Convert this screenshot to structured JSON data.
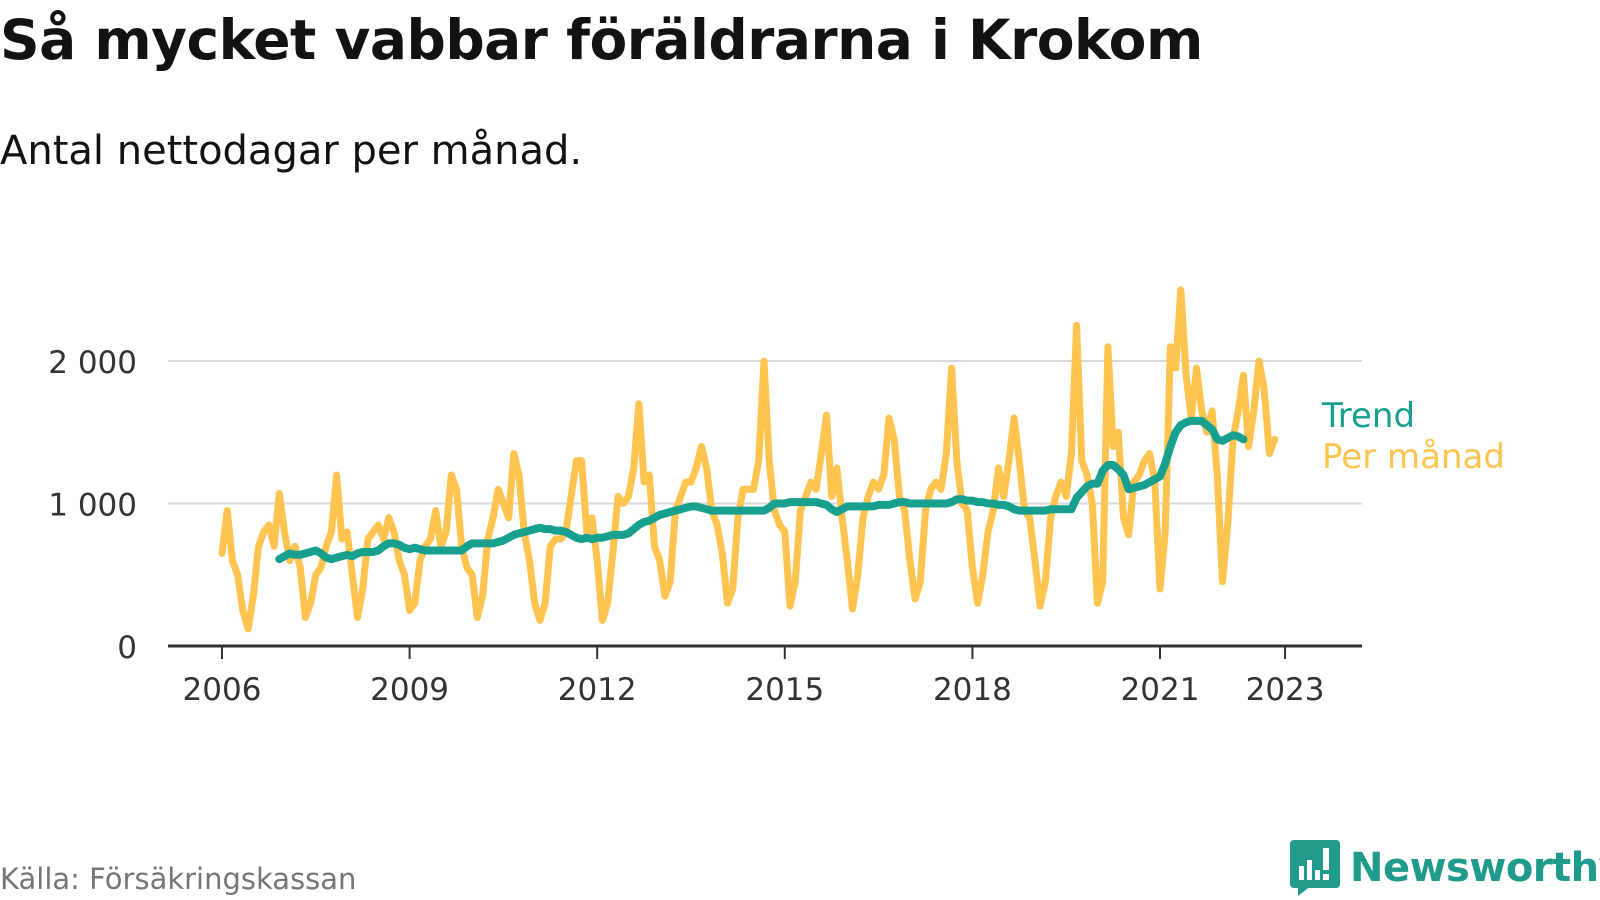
{
  "title": "Så mycket vabbar föräldrarna i Krokom",
  "subtitle": "Antal nettodagar per månad.",
  "source": "Källa: Försäkringskassan",
  "brand": {
    "name": "Newsworthy",
    "icon": "newsworthy-logo-icon",
    "color": "#1f9a8b"
  },
  "chart_data": {
    "type": "line",
    "ylim": [
      0,
      2500
    ],
    "y_ticks": [
      0,
      1000,
      2000
    ],
    "y_tick_labels": [
      "0",
      "1 000",
      "2 000"
    ],
    "x_ticks": [
      2006,
      2009,
      2012,
      2015,
      2018,
      2021,
      2023
    ],
    "x_tick_labels": [
      "2006",
      "2009",
      "2012",
      "2015",
      "2018",
      "2021",
      "2023"
    ],
    "grid": true,
    "legend": "right-end",
    "series": [
      {
        "name": "Per månad",
        "color": "#fec44f",
        "start": [
          2006,
          1
        ],
        "values": [
          650,
          950,
          600,
          500,
          250,
          120,
          350,
          700,
          800,
          850,
          700,
          1070,
          800,
          600,
          700,
          550,
          200,
          300,
          500,
          550,
          700,
          800,
          1200,
          750,
          800,
          500,
          200,
          400,
          750,
          800,
          850,
          750,
          900,
          800,
          600,
          500,
          250,
          300,
          600,
          700,
          750,
          950,
          700,
          800,
          1200,
          1100,
          700,
          550,
          500,
          200,
          350,
          750,
          900,
          1100,
          1000,
          900,
          1350,
          1200,
          800,
          600,
          300,
          180,
          300,
          700,
          750,
          750,
          800,
          1050,
          1300,
          1300,
          800,
          900,
          600,
          180,
          300,
          650,
          1050,
          1000,
          1050,
          1250,
          1700,
          1150,
          1200,
          700,
          600,
          350,
          450,
          950,
          1050,
          1150,
          1150,
          1250,
          1400,
          1250,
          950,
          850,
          650,
          300,
          400,
          900,
          1100,
          1100,
          1100,
          1300,
          2000,
          1300,
          950,
          850,
          800,
          280,
          450,
          950,
          1050,
          1150,
          1100,
          1350,
          1620,
          1050,
          1250,
          900,
          600,
          260,
          500,
          900,
          1050,
          1150,
          1100,
          1200,
          1600,
          1450,
          1050,
          950,
          600,
          330,
          450,
          950,
          1100,
          1150,
          1100,
          1350,
          1950,
          1300,
          1000,
          950,
          550,
          300,
          500,
          800,
          950,
          1250,
          1050,
          1300,
          1600,
          1300,
          950,
          900,
          600,
          280,
          450,
          900,
          1050,
          1150,
          1050,
          1350,
          2250,
          1300,
          1200,
          1000,
          300,
          450,
          2100,
          1400,
          1500,
          900,
          780,
          1150,
          1200,
          1300,
          1350,
          1150,
          400,
          800,
          2100,
          1950,
          2500,
          1900,
          1600,
          1950,
          1650,
          1500,
          1650,
          1200,
          450,
          850,
          1450,
          1650,
          1900,
          1400,
          1650,
          2000,
          1800,
          1350,
          1450
        ]
      },
      {
        "name": "Trend",
        "color": "#17a08e",
        "start": [
          2006,
          12
        ],
        "values": [
          610,
          630,
          650,
          640,
          640,
          650,
          660,
          670,
          650,
          620,
          610,
          620,
          630,
          640,
          630,
          650,
          660,
          660,
          660,
          670,
          700,
          720,
          720,
          710,
          690,
          680,
          690,
          680,
          670,
          670,
          670,
          670,
          670,
          670,
          670,
          670,
          700,
          720,
          720,
          720,
          720,
          720,
          730,
          740,
          760,
          780,
          790,
          800,
          810,
          820,
          830,
          820,
          820,
          810,
          810,
          800,
          780,
          760,
          750,
          760,
          750,
          760,
          760,
          770,
          780,
          780,
          780,
          790,
          820,
          850,
          870,
          880,
          900,
          920,
          930,
          940,
          950,
          960,
          970,
          980,
          980,
          970,
          960,
          950,
          950,
          950,
          950,
          950,
          950,
          950,
          950,
          950,
          950,
          950,
          970,
          1000,
          1000,
          1000,
          1010,
          1010,
          1010,
          1010,
          1010,
          1010,
          1000,
          990,
          960,
          940,
          960,
          980,
          980,
          980,
          980,
          980,
          980,
          990,
          990,
          990,
          1000,
          1010,
          1010,
          1000,
          1000,
          1000,
          1000,
          1000,
          1000,
          1000,
          1000,
          1010,
          1030,
          1030,
          1020,
          1020,
          1010,
          1010,
          1000,
          1000,
          990,
          990,
          980,
          960,
          950,
          950,
          950,
          950,
          950,
          950,
          960,
          960,
          960,
          960,
          960,
          1040,
          1080,
          1120,
          1140,
          1140,
          1230,
          1270,
          1270,
          1240,
          1200,
          1100,
          1110,
          1120,
          1130,
          1150,
          1170,
          1190,
          1280,
          1400,
          1500,
          1550,
          1570,
          1580,
          1580,
          1580,
          1550,
          1520,
          1450,
          1440,
          1460,
          1480,
          1470,
          1450
        ]
      }
    ]
  }
}
